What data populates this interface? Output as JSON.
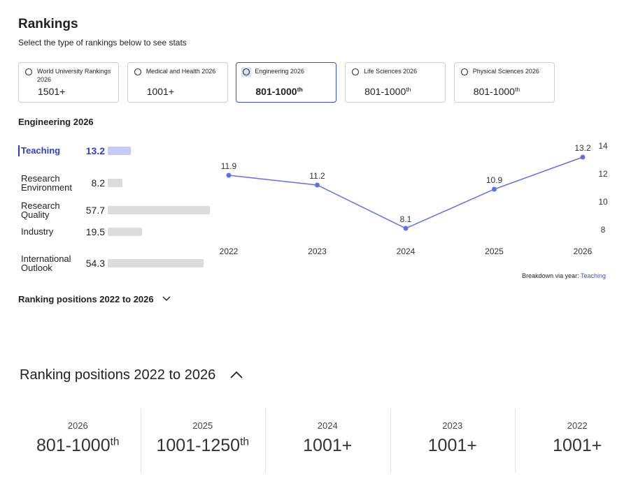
{
  "header": {
    "title": "Rankings",
    "subtitle": "Select the type of rankings below to see stats"
  },
  "tabs": [
    {
      "label": "World University Rankings 2026",
      "rank": "1501+"
    },
    {
      "label": "Medical and Health 2026",
      "rank": "1001+"
    },
    {
      "label": "Engineering 2026",
      "rank": "801-1000",
      "suffix": "th",
      "selected": true
    },
    {
      "label": "Life Sciences 2026",
      "rank": "801-1000",
      "suffix": "th"
    },
    {
      "label": "Physical Sciences 2026",
      "rank": "801-1000",
      "suffix": "th"
    }
  ],
  "section_title": "Engineering 2026",
  "metrics": [
    {
      "label": "Teaching",
      "value": 13.2,
      "selected": true
    },
    {
      "label": "Research Environment",
      "value": 8.2
    },
    {
      "label": "Research Quality",
      "value": 57.7
    },
    {
      "label": "Industry",
      "value": 19.5
    },
    {
      "label": "International Outlook",
      "value": 54.3
    }
  ],
  "chart_data": {
    "type": "line",
    "categories": [
      "2022",
      "2023",
      "2024",
      "2025",
      "2026"
    ],
    "values": [
      11.9,
      11.2,
      8.1,
      10.9,
      13.2
    ],
    "color": "#6170e8",
    "ylim": [
      8,
      14
    ],
    "yticks": [
      8,
      10,
      12,
      14
    ],
    "note": "Breakdown via year:"
  },
  "positions": {
    "title": "Ranking positions 2022 to 2026",
    "items": [
      {
        "year": "2026",
        "rank": "801-1000",
        "suffix": "th"
      },
      {
        "year": "2025",
        "rank": "1001-1250",
        "suffix": "th"
      },
      {
        "year": "2024",
        "rank": "1001+"
      },
      {
        "year": "2023",
        "rank": "1001+"
      },
      {
        "year": "2022",
        "rank": "1001+"
      }
    ]
  }
}
